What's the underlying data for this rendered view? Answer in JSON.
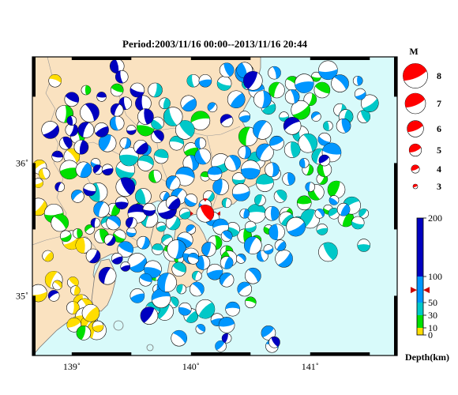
{
  "title": "Period:2003/11/16 00:00--2013/11/16 20:44",
  "x_axis": {
    "min": 138.67,
    "max": 141.73,
    "ticks": [
      139,
      140,
      141
    ],
    "tick_labels": [
      "139˚",
      "140˚",
      "141˚"
    ]
  },
  "y_axis": {
    "min": 34.55,
    "max": 36.8,
    "ticks": [
      35,
      36
    ],
    "tick_labels": [
      "35˚",
      "36˚"
    ]
  },
  "colors": {
    "land": "#fae2c0",
    "sea": "#d8fafa",
    "shallow": "#ffdd00",
    "d10": "#ffdd00",
    "d30": "#00e000",
    "d50": "#00c8c8",
    "d100": "#0096ff",
    "d200": "#0000c0",
    "highlight": "#ff0000"
  },
  "magnitude_legend": {
    "header": "M",
    "items": [
      {
        "label": "8",
        "magnitude": 8
      },
      {
        "label": "7",
        "magnitude": 7
      },
      {
        "label": "6",
        "magnitude": 6
      },
      {
        "label": "5",
        "magnitude": 5
      },
      {
        "label": "4",
        "magnitude": 4
      },
      {
        "label": "3",
        "magnitude": 3
      }
    ]
  },
  "depth_scale": {
    "title": "Depth(km)",
    "tick_labels": [
      "200",
      "100",
      "50",
      "30",
      "10",
      "0"
    ],
    "ticks": [
      200,
      100,
      50,
      30,
      10,
      0
    ],
    "marker_depth": 74
  },
  "highlight_event": {
    "lon": 140.12,
    "lat": 35.62,
    "magnitude": 5.3,
    "depth_km": 74
  },
  "chart_data": {
    "type": "scatter",
    "title": "Period:2003/11/16 00:00--2013/11/16 20:44",
    "xlim": [
      138.67,
      141.73
    ],
    "ylim": [
      34.55,
      36.8
    ],
    "note_legend": "Depth(km)",
    "series": [
      {
        "name": "0",
        "points": [
          [
            138.86,
            36.62
          ],
          [
            139.0,
            36.05
          ],
          [
            138.73,
            35.97
          ],
          [
            138.77,
            35.92
          ],
          [
            138.72,
            35.85
          ],
          [
            138.72,
            35.67
          ],
          [
            138.8,
            35.3
          ],
          [
            139.0,
            35.42
          ],
          [
            139.1,
            35.38
          ],
          [
            138.85,
            35.12
          ],
          [
            138.88,
            35.08
          ],
          [
            139.01,
            35.1
          ],
          [
            139.03,
            35.04
          ],
          [
            138.72,
            35.02
          ],
          [
            139.08,
            34.95
          ],
          [
            139.11,
            34.92
          ],
          [
            139.01,
            34.91
          ],
          [
            139.11,
            34.84
          ],
          [
            139.15,
            34.79
          ],
          [
            139.02,
            34.78
          ],
          [
            139.21,
            34.74
          ],
          [
            139.22,
            34.77
          ],
          [
            139.16,
            34.87
          ]
        ]
      },
      {
        "name": "30",
        "points": [
          [
            138.94,
            36.37
          ],
          [
            139.05,
            36.2
          ],
          [
            138.98,
            35.95
          ],
          [
            138.85,
            35.62
          ],
          [
            138.9,
            35.55
          ],
          [
            138.95,
            35.45
          ],
          [
            139.05,
            35.47
          ],
          [
            139.15,
            35.5
          ],
          [
            139.25,
            35.45
          ],
          [
            139.4,
            35.45
          ],
          [
            139.85,
            35.33
          ],
          [
            139.7,
            35.15
          ],
          [
            139.9,
            35.28
          ],
          [
            140.3,
            35.33
          ],
          [
            140.2,
            35.4
          ],
          [
            140.45,
            35.45
          ],
          [
            140.55,
            35.42
          ],
          [
            140.65,
            35.5
          ],
          [
            140.8,
            35.62
          ],
          [
            140.95,
            35.7
          ],
          [
            141.05,
            35.78
          ],
          [
            141.1,
            35.88
          ],
          [
            140.98,
            35.95
          ],
          [
            141.12,
            35.95
          ],
          [
            141.22,
            35.8
          ],
          [
            141.15,
            35.65
          ],
          [
            141.3,
            35.58
          ],
          [
            140.7,
            35.92
          ],
          [
            140.72,
            36.55
          ],
          [
            140.85,
            36.6
          ],
          [
            141.05,
            36.65
          ],
          [
            141.0,
            36.48
          ],
          [
            141.1,
            36.55
          ],
          [
            140.92,
            36.4
          ],
          [
            139.62,
            36.27
          ],
          [
            139.38,
            36.55
          ],
          [
            139.12,
            36.55
          ],
          [
            140.0,
            36.1
          ],
          [
            140.08,
            36.32
          ],
          [
            140.48,
            36.2
          ],
          [
            140.32,
            35.28
          ],
          [
            140.5,
            34.95
          ],
          [
            139.1,
            34.72
          ],
          [
            139.35,
            35.65
          ],
          [
            139.58,
            35.65
          ],
          [
            139.7,
            35.9
          ],
          [
            140.12,
            35.9
          ]
        ]
      },
      {
        "name": "50",
        "points": [
          [
            140.02,
            36.62
          ],
          [
            140.28,
            36.6
          ],
          [
            140.48,
            36.6
          ],
          [
            140.65,
            36.42
          ],
          [
            140.78,
            36.35
          ],
          [
            140.92,
            36.22
          ],
          [
            140.98,
            36.15
          ],
          [
            141.08,
            36.05
          ],
          [
            141.25,
            36.4
          ],
          [
            141.3,
            36.35
          ],
          [
            141.45,
            36.35
          ],
          [
            141.5,
            36.45
          ],
          [
            141.15,
            36.28
          ],
          [
            140.85,
            36.1
          ],
          [
            140.75,
            35.75
          ],
          [
            140.8,
            35.58
          ],
          [
            140.9,
            35.55
          ],
          [
            141.0,
            35.58
          ],
          [
            141.2,
            35.62
          ],
          [
            141.35,
            35.68
          ],
          [
            141.45,
            35.62
          ],
          [
            141.4,
            35.55
          ],
          [
            141.1,
            35.5
          ],
          [
            141.15,
            35.33
          ],
          [
            141.45,
            35.38
          ],
          [
            140.55,
            35.62
          ],
          [
            140.58,
            35.72
          ],
          [
            140.4,
            35.88
          ],
          [
            140.25,
            36.0
          ],
          [
            140.15,
            35.75
          ],
          [
            140.3,
            35.7
          ],
          [
            139.95,
            35.62
          ],
          [
            139.85,
            35.55
          ],
          [
            139.75,
            35.52
          ],
          [
            139.65,
            35.58
          ],
          [
            139.8,
            35.42
          ],
          [
            139.72,
            35.35
          ],
          [
            139.9,
            35.2
          ],
          [
            140.05,
            35.15
          ],
          [
            139.92,
            35.05
          ],
          [
            139.85,
            34.95
          ],
          [
            139.78,
            34.88
          ],
          [
            140.0,
            34.85
          ],
          [
            140.12,
            34.9
          ],
          [
            139.68,
            34.9
          ],
          [
            139.6,
            35.75
          ],
          [
            139.5,
            35.85
          ],
          [
            139.45,
            35.95
          ],
          [
            139.48,
            36.05
          ],
          [
            139.62,
            36.0
          ],
          [
            139.75,
            36.05
          ],
          [
            139.88,
            36.15
          ],
          [
            139.95,
            36.25
          ],
          [
            139.85,
            36.35
          ],
          [
            139.78,
            36.45
          ],
          [
            139.7,
            36.55
          ],
          [
            139.72,
            36.3
          ],
          [
            140.55,
            36.02
          ],
          [
            140.62,
            35.85
          ],
          [
            140.35,
            35.5
          ],
          [
            140.5,
            35.52
          ],
          [
            139.22,
            35.78
          ],
          [
            139.3,
            35.55
          ]
        ]
      },
      {
        "name": "100",
        "points": [
          [
            139.98,
            36.45
          ],
          [
            140.12,
            36.62
          ],
          [
            140.3,
            36.7
          ],
          [
            140.45,
            36.68
          ],
          [
            140.55,
            36.55
          ],
          [
            140.7,
            36.68
          ],
          [
            140.18,
            36.42
          ],
          [
            140.08,
            36.15
          ],
          [
            140.0,
            36.0
          ],
          [
            139.95,
            35.9
          ],
          [
            139.85,
            35.85
          ],
          [
            139.78,
            35.75
          ],
          [
            139.9,
            35.75
          ],
          [
            140.0,
            35.72
          ],
          [
            140.12,
            35.68
          ],
          [
            140.18,
            35.58
          ],
          [
            140.25,
            35.52
          ],
          [
            140.0,
            35.5
          ],
          [
            139.95,
            35.42
          ],
          [
            139.88,
            35.35
          ],
          [
            140.0,
            35.3
          ],
          [
            140.1,
            35.25
          ],
          [
            140.2,
            35.18
          ],
          [
            140.3,
            35.12
          ],
          [
            140.05,
            35.05
          ],
          [
            139.95,
            34.9
          ],
          [
            140.08,
            34.75
          ],
          [
            140.22,
            34.82
          ],
          [
            140.3,
            34.78
          ],
          [
            140.35,
            34.9
          ],
          [
            139.9,
            34.68
          ],
          [
            140.25,
            34.62
          ],
          [
            140.65,
            34.72
          ],
          [
            140.68,
            34.62
          ],
          [
            140.52,
            35.15
          ],
          [
            140.45,
            35.05
          ],
          [
            140.6,
            35.3
          ],
          [
            140.65,
            35.35
          ],
          [
            140.78,
            35.28
          ],
          [
            140.75,
            35.38
          ],
          [
            140.88,
            35.52
          ],
          [
            140.72,
            35.48
          ],
          [
            140.52,
            35.38
          ],
          [
            140.42,
            35.28
          ],
          [
            140.3,
            35.45
          ],
          [
            140.45,
            35.62
          ],
          [
            140.42,
            35.78
          ],
          [
            140.25,
            35.82
          ],
          [
            140.35,
            36.0
          ],
          [
            140.45,
            36.08
          ],
          [
            140.5,
            35.95
          ],
          [
            140.62,
            36.08
          ],
          [
            140.72,
            36.15
          ],
          [
            140.6,
            36.25
          ],
          [
            140.45,
            36.35
          ],
          [
            140.38,
            36.48
          ],
          [
            140.6,
            36.48
          ],
          [
            140.85,
            36.5
          ],
          [
            140.95,
            36.6
          ],
          [
            141.15,
            36.7
          ],
          [
            141.25,
            36.6
          ],
          [
            141.42,
            36.52
          ],
          [
            141.4,
            36.62
          ],
          [
            141.05,
            36.35
          ],
          [
            141.28,
            36.28
          ],
          [
            141.12,
            36.18
          ],
          [
            141.18,
            36.08
          ],
          [
            140.95,
            36.0
          ],
          [
            141.0,
            35.82
          ],
          [
            140.82,
            35.88
          ],
          [
            140.68,
            35.95
          ],
          [
            140.68,
            35.62
          ],
          [
            141.08,
            35.62
          ],
          [
            141.2,
            35.72
          ],
          [
            141.28,
            35.65
          ],
          [
            140.2,
            35.92
          ],
          [
            140.1,
            36.05
          ],
          [
            139.62,
            36.1
          ],
          [
            139.45,
            36.15
          ],
          [
            139.38,
            36.3
          ],
          [
            139.3,
            36.15
          ],
          [
            139.2,
            36.0
          ],
          [
            139.1,
            35.95
          ],
          [
            139.05,
            35.75
          ],
          [
            139.25,
            35.65
          ],
          [
            139.35,
            35.55
          ],
          [
            139.5,
            35.48
          ],
          [
            139.6,
            35.4
          ],
          [
            139.45,
            35.35
          ],
          [
            139.55,
            35.25
          ],
          [
            139.68,
            35.2
          ],
          [
            139.62,
            35.12
          ],
          [
            139.72,
            35.05
          ],
          [
            139.55,
            35.0
          ],
          [
            139.75,
            34.98
          ],
          [
            139.8,
            35.1
          ],
          [
            140.45,
            36.7
          ],
          [
            140.02,
            35.28
          ],
          [
            140.15,
            35.35
          ],
          [
            140.3,
            35.25
          ]
        ]
      },
      {
        "name": "200",
        "points": [
          [
            139.38,
            36.73
          ],
          [
            139.42,
            36.65
          ],
          [
            139.25,
            36.5
          ],
          [
            139.45,
            36.45
          ],
          [
            139.55,
            36.55
          ],
          [
            139.38,
            36.4
          ],
          [
            139.25,
            36.25
          ],
          [
            139.5,
            36.25
          ],
          [
            139.6,
            36.45
          ],
          [
            139.15,
            36.38
          ],
          [
            139.12,
            36.25
          ],
          [
            139.0,
            36.25
          ],
          [
            139.08,
            36.12
          ],
          [
            138.95,
            36.15
          ],
          [
            138.82,
            36.25
          ],
          [
            139.0,
            36.32
          ],
          [
            139.62,
            36.35
          ],
          [
            139.72,
            36.2
          ],
          [
            139.58,
            36.12
          ],
          [
            140.3,
            36.32
          ],
          [
            140.52,
            36.62
          ],
          [
            141.12,
            36.02
          ],
          [
            140.85,
            36.28
          ],
          [
            139.22,
            35.95
          ],
          [
            139.15,
            35.8
          ],
          [
            139.3,
            35.95
          ],
          [
            139.45,
            35.82
          ],
          [
            139.42,
            35.7
          ],
          [
            139.55,
            35.62
          ],
          [
            139.5,
            35.55
          ],
          [
            139.65,
            35.65
          ],
          [
            139.8,
            35.65
          ],
          [
            139.32,
            35.42
          ],
          [
            139.2,
            35.55
          ],
          [
            139.38,
            35.28
          ],
          [
            139.18,
            35.3
          ],
          [
            139.45,
            35.22
          ],
          [
            139.3,
            35.15
          ],
          [
            138.85,
            35.0
          ],
          [
            138.88,
            36.05
          ],
          [
            139.0,
            36.48
          ],
          [
            138.9,
            35.82
          ],
          [
            140.3,
            34.68
          ],
          [
            140.7,
            34.65
          ],
          [
            139.65,
            34.85
          ],
          [
            139.85,
            35.7
          ]
        ]
      }
    ]
  }
}
